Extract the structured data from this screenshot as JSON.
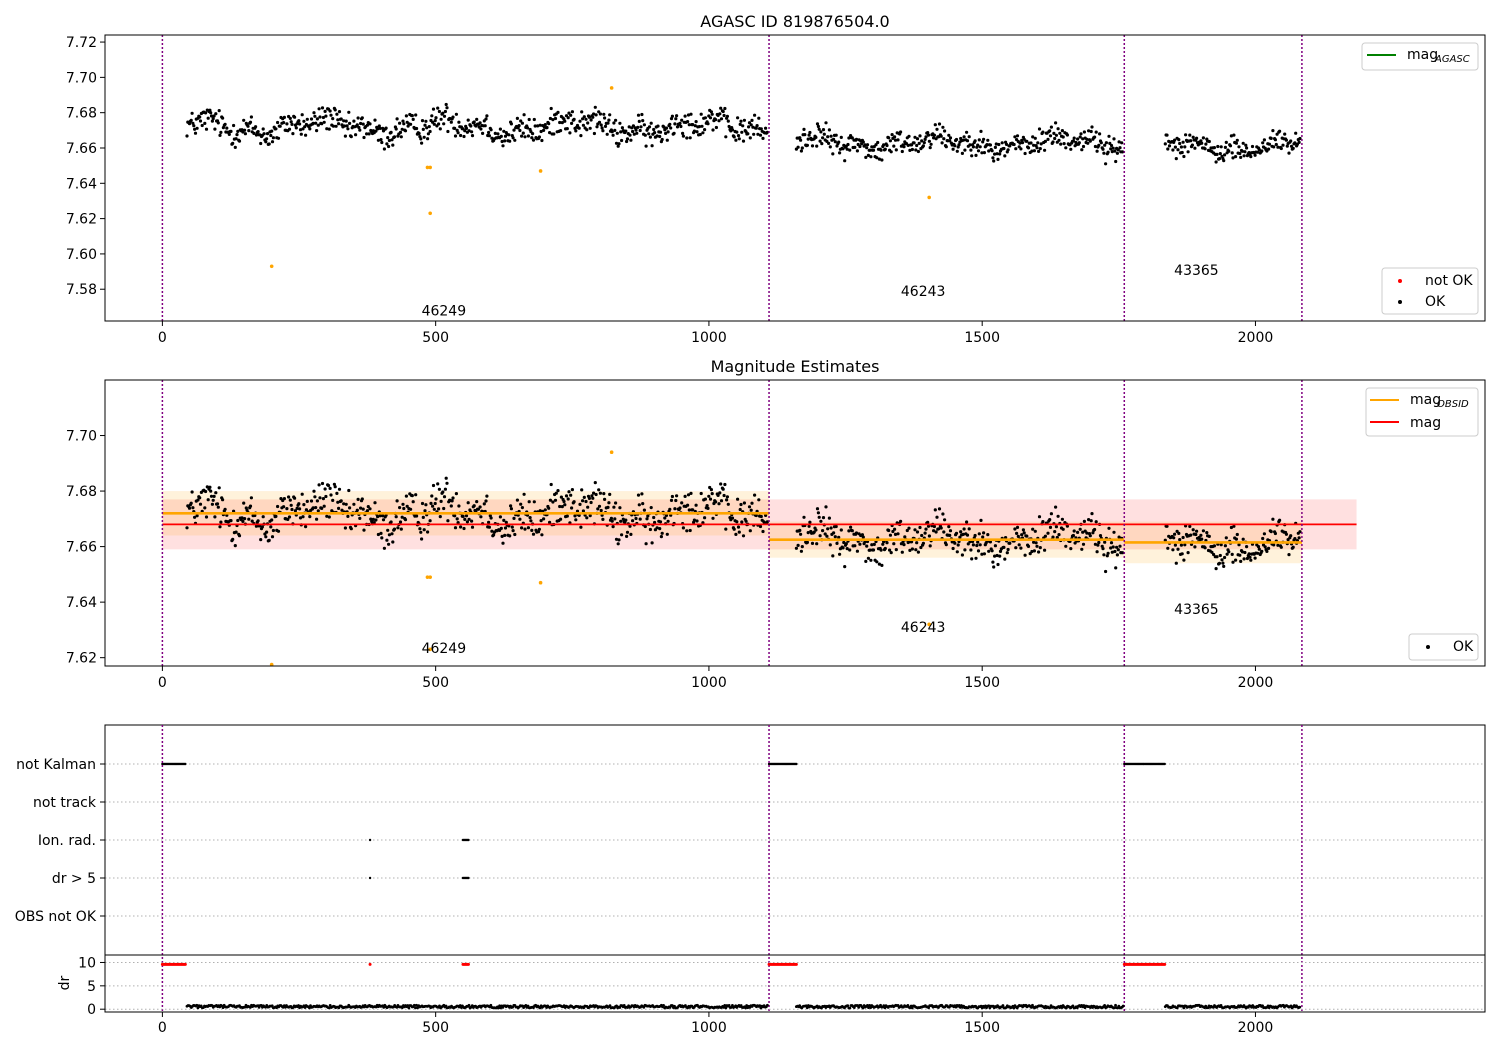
{
  "chart_data": [
    {
      "type": "scatter",
      "title": "AGASC ID 819876504.0",
      "xlim": [
        -105,
        2420
      ],
      "ylim": [
        7.562,
        7.724
      ],
      "xticks": [
        0,
        500,
        1000,
        1500,
        2000
      ],
      "yticks": [
        7.58,
        7.6,
        7.62,
        7.64,
        7.66,
        7.68,
        7.7,
        7.72
      ],
      "yticklabels": [
        "7.58",
        "7.60",
        "7.62",
        "7.64",
        "7.66",
        "7.68",
        "7.70",
        "7.72"
      ],
      "obsid_boundaries": [
        0,
        1110,
        1760,
        2085
      ],
      "obsid_labels": [
        {
          "text": "46249",
          "x": 515,
          "y": 7.568
        },
        {
          "text": "46243",
          "x": 1392,
          "y": 7.579
        },
        {
          "text": "43365",
          "x": 1892,
          "y": 7.591
        }
      ],
      "legend_upper": [
        {
          "label": "mag",
          "sub": "AGASC",
          "color": "#008000",
          "kind": "line"
        }
      ],
      "legend_lower": [
        {
          "label": "not OK",
          "color": "#ff0000",
          "kind": "point"
        },
        {
          "label": "OK",
          "color": "#000000",
          "kind": "point"
        }
      ],
      "segments": [
        {
          "x": [
            45,
            1108
          ],
          "mean": 7.672,
          "amp": 0.0065
        },
        {
          "x": [
            1160,
            1758
          ],
          "mean": 7.663,
          "amp": 0.0058
        },
        {
          "x": [
            1835,
            2082
          ],
          "mean": 7.661,
          "amp": 0.0055
        }
      ],
      "outliers": [
        {
          "x": 200,
          "y": 7.593
        },
        {
          "x": 485,
          "y": 7.649
        },
        {
          "x": 490,
          "y": 7.649
        },
        {
          "x": 490,
          "y": 7.623
        },
        {
          "x": 692,
          "y": 7.647
        },
        {
          "x": 822,
          "y": 7.694
        },
        {
          "x": 1403,
          "y": 7.632
        }
      ]
    },
    {
      "type": "scatter",
      "title": "Magnitude Estimates",
      "xlim": [
        -105,
        2420
      ],
      "ylim": [
        7.617,
        7.72
      ],
      "xticks": [
        0,
        500,
        1000,
        1500,
        2000
      ],
      "yticks": [
        7.62,
        7.64,
        7.66,
        7.68,
        7.7
      ],
      "yticklabels": [
        "7.62",
        "7.64",
        "7.66",
        "7.68",
        "7.70"
      ],
      "obsid_boundaries": [
        0,
        1110,
        1760,
        2085
      ],
      "obsid_labels": [
        {
          "text": "46249",
          "x": 515,
          "y": 7.6235
        },
        {
          "text": "46243",
          "x": 1392,
          "y": 7.631
        },
        {
          "text": "43365",
          "x": 1892,
          "y": 7.6375
        }
      ],
      "legend_upper": [
        {
          "label": "mag",
          "sub": "OBSID",
          "color": "#ffa500",
          "kind": "line"
        },
        {
          "label": "mag",
          "sub": "",
          "color": "#ff0000",
          "kind": "line"
        }
      ],
      "legend_lower": [
        {
          "label": "OK",
          "color": "#000000",
          "kind": "point"
        }
      ],
      "mag": {
        "value": 7.668,
        "band": [
          7.659,
          7.677
        ],
        "x": [
          0,
          2185
        ]
      },
      "mag_obsid": [
        {
          "x": [
            0,
            1110
          ],
          "value": 7.672,
          "band": [
            7.664,
            7.68
          ]
        },
        {
          "x": [
            1110,
            1760
          ],
          "value": 7.6625,
          "band": [
            7.656,
            7.669
          ]
        },
        {
          "x": [
            1760,
            2085
          ],
          "value": 7.6615,
          "band": [
            7.654,
            7.669
          ]
        }
      ],
      "outliers": [
        {
          "x": 200,
          "y": 7.6175
        },
        {
          "x": 485,
          "y": 7.649
        },
        {
          "x": 490,
          "y": 7.649
        },
        {
          "x": 490,
          "y": 7.623
        },
        {
          "x": 692,
          "y": 7.647
        },
        {
          "x": 822,
          "y": 7.694
        },
        {
          "x": 1403,
          "y": 7.632
        }
      ]
    },
    {
      "type": "scatter",
      "flag_rows": [
        "not Kalman",
        "not track",
        "Ion. rad.",
        "dr > 5",
        "OBS not OK"
      ],
      "flags": {
        "not Kalman": [
          [
            0,
            42
          ],
          [
            1110,
            1160
          ],
          [
            1760,
            1835
          ]
        ],
        "Ion. rad.": [
          [
            380,
            380
          ],
          [
            550,
            560
          ]
        ],
        "dr > 5": [
          [
            380,
            380
          ],
          [
            550,
            560
          ]
        ]
      },
      "dr_ylabel": "dr",
      "dr_yticks": [
        0,
        5,
        10
      ],
      "dr_ylim": [
        -0.6,
        11.6
      ],
      "dr_flag_level": 9.6,
      "xticks": [
        0,
        500,
        1000,
        1500,
        2000
      ],
      "obsid_boundaries": [
        0,
        1110,
        1760,
        2085
      ]
    }
  ]
}
